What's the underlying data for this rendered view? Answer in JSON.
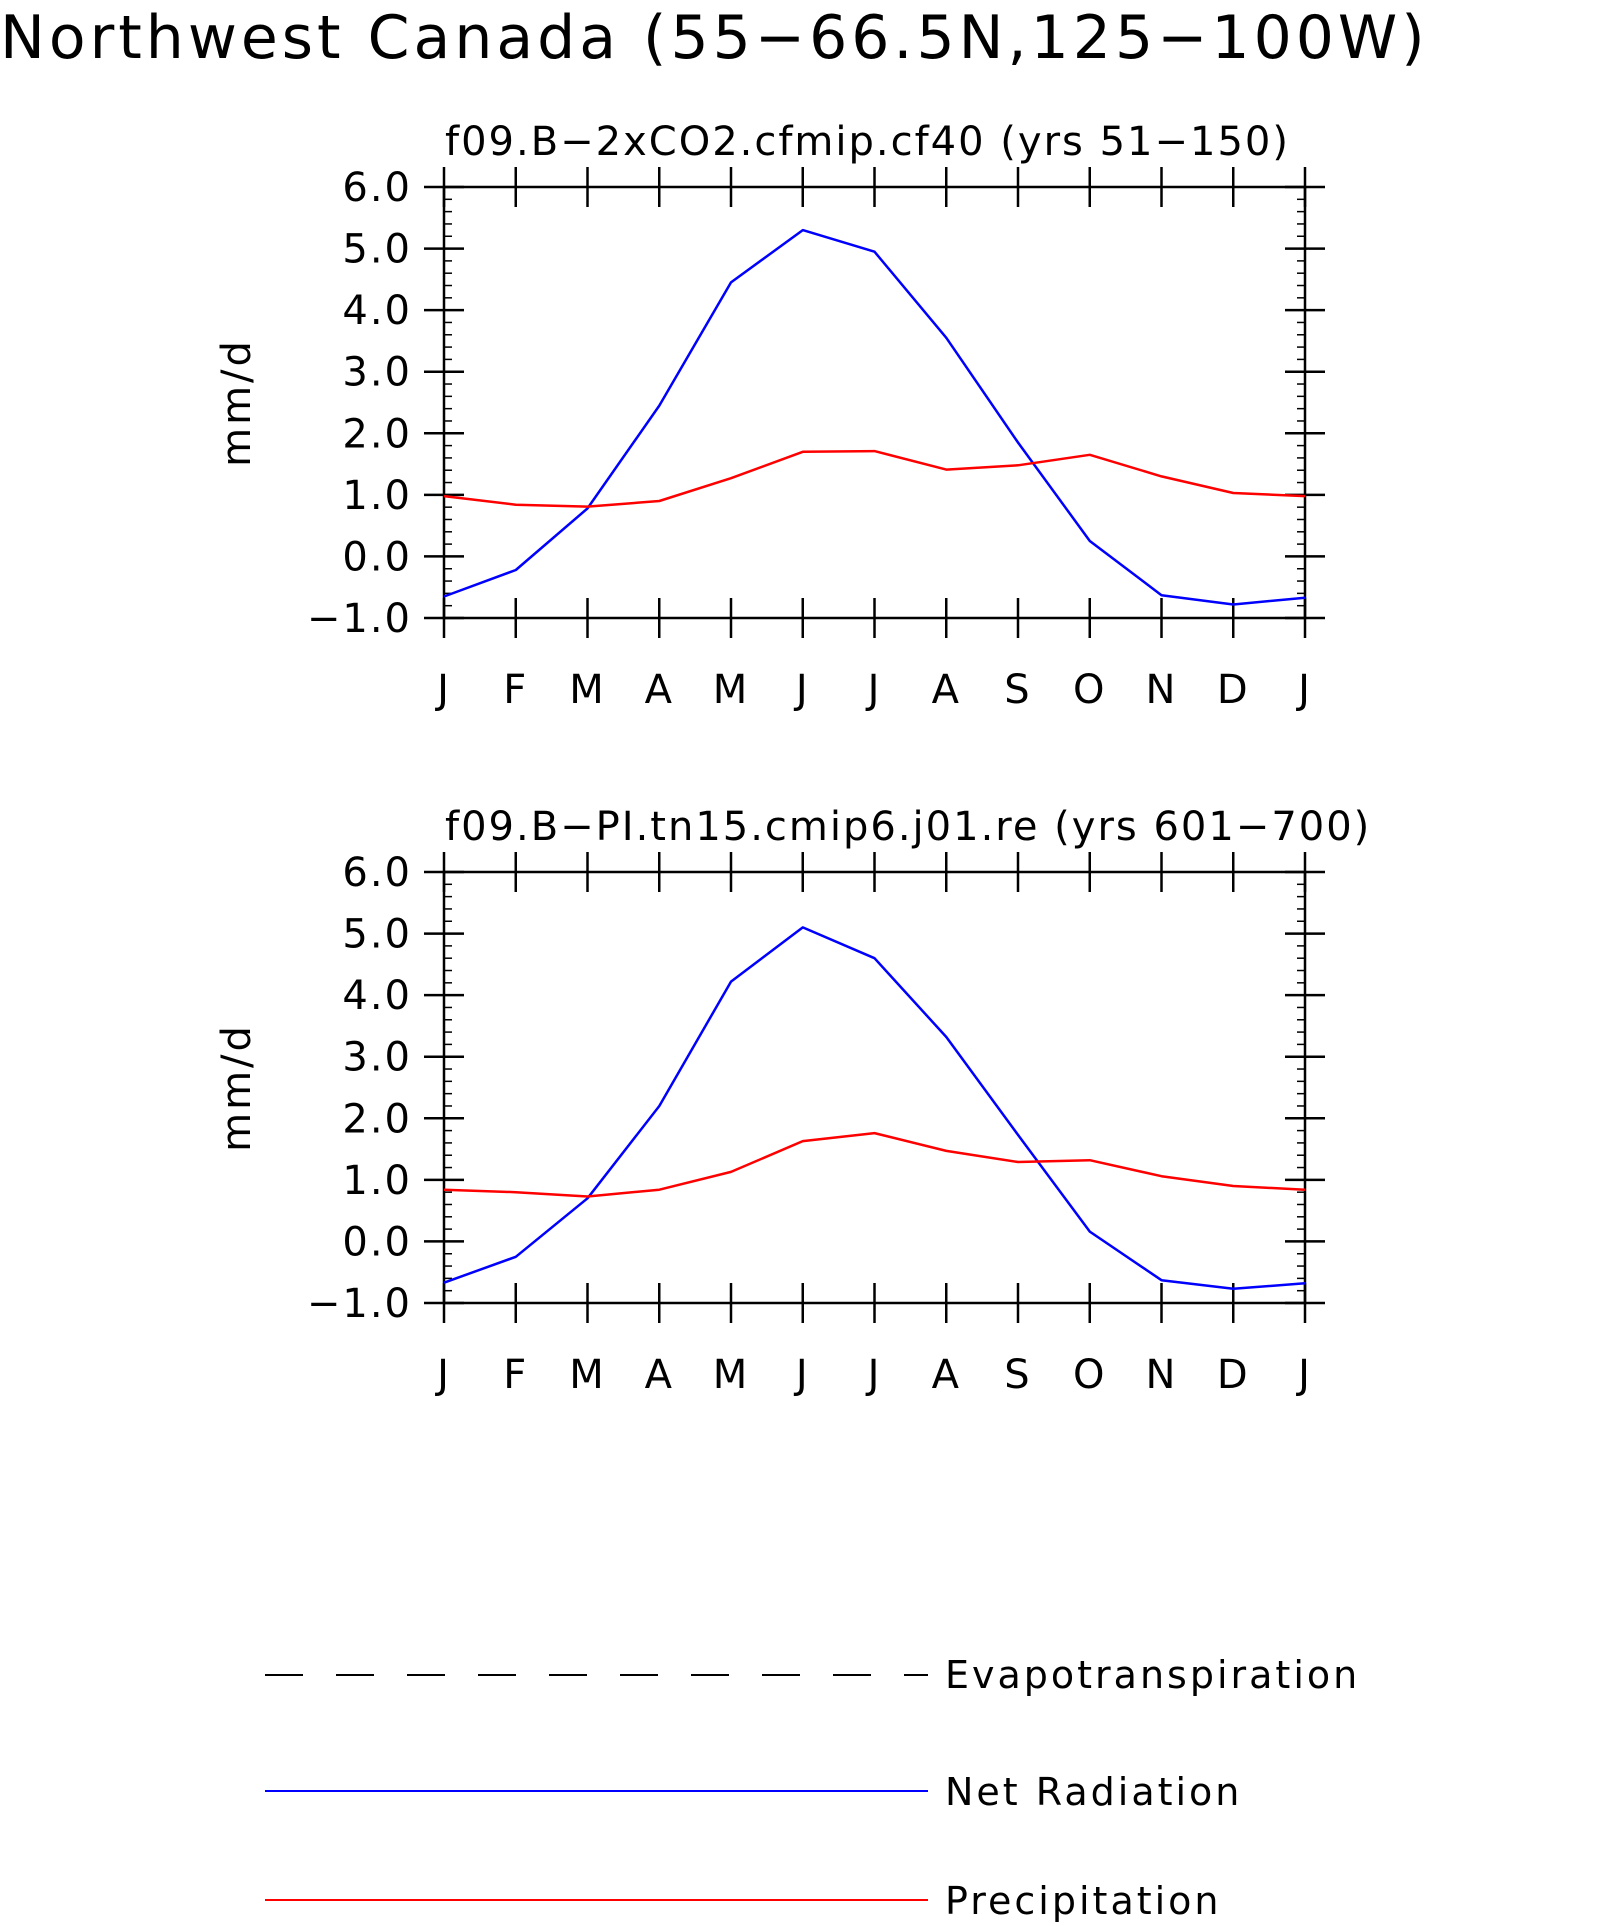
{
  "title": "Northwest Canada (55−66.5N,125−100W)",
  "chart_data": [
    {
      "type": "line",
      "title": "f09.B−2xCO2.cfmip.cf40 (yrs 51−150)",
      "ylabel": "mm/d",
      "xlabel": "",
      "categories": [
        "J",
        "F",
        "M",
        "A",
        "M",
        "J",
        "J",
        "A",
        "S",
        "O",
        "N",
        "D",
        "J"
      ],
      "y_tick_labels": [
        "−1.0",
        "0.0",
        "1.0",
        "2.0",
        "3.0",
        "4.0",
        "5.0",
        "6.0"
      ],
      "ylim": [
        -1.0,
        6.0
      ],
      "series": [
        {
          "name": "Net Radiation",
          "color": "#0000ff",
          "values": [
            -0.65,
            -0.22,
            0.78,
            2.45,
            4.45,
            5.3,
            4.95,
            3.55,
            1.85,
            0.25,
            -0.63,
            -0.78,
            -0.67
          ]
        },
        {
          "name": "Precipitation",
          "color": "#ff0000",
          "values": [
            0.98,
            0.84,
            0.81,
            0.9,
            1.27,
            1.7,
            1.71,
            1.41,
            1.48,
            1.65,
            1.3,
            1.03,
            0.98
          ]
        }
      ]
    },
    {
      "type": "line",
      "title": "f09.B−PI.tn15.cmip6.j01.re (yrs 601−700)",
      "ylabel": "mm/d",
      "xlabel": "",
      "categories": [
        "J",
        "F",
        "M",
        "A",
        "M",
        "J",
        "J",
        "A",
        "S",
        "O",
        "N",
        "D",
        "J"
      ],
      "y_tick_labels": [
        "−1.0",
        "0.0",
        "1.0",
        "2.0",
        "3.0",
        "4.0",
        "5.0",
        "6.0"
      ],
      "ylim": [
        -1.0,
        6.0
      ],
      "series": [
        {
          "name": "Net Radiation",
          "color": "#0000ff",
          "values": [
            -0.67,
            -0.25,
            0.7,
            2.2,
            4.22,
            5.1,
            4.6,
            3.32,
            1.73,
            0.16,
            -0.63,
            -0.77,
            -0.68
          ]
        },
        {
          "name": "Precipitation",
          "color": "#ff0000",
          "values": [
            0.84,
            0.8,
            0.73,
            0.84,
            1.13,
            1.63,
            1.76,
            1.47,
            1.29,
            1.32,
            1.06,
            0.9,
            0.84
          ]
        }
      ]
    }
  ],
  "legend": [
    {
      "label": "Evapotranspiration",
      "color": "#000000",
      "style": "dashed"
    },
    {
      "label": "Net Radiation",
      "color": "#0000ff",
      "style": "solid"
    },
    {
      "label": "Precipitation",
      "color": "#ff0000",
      "style": "solid"
    }
  ]
}
